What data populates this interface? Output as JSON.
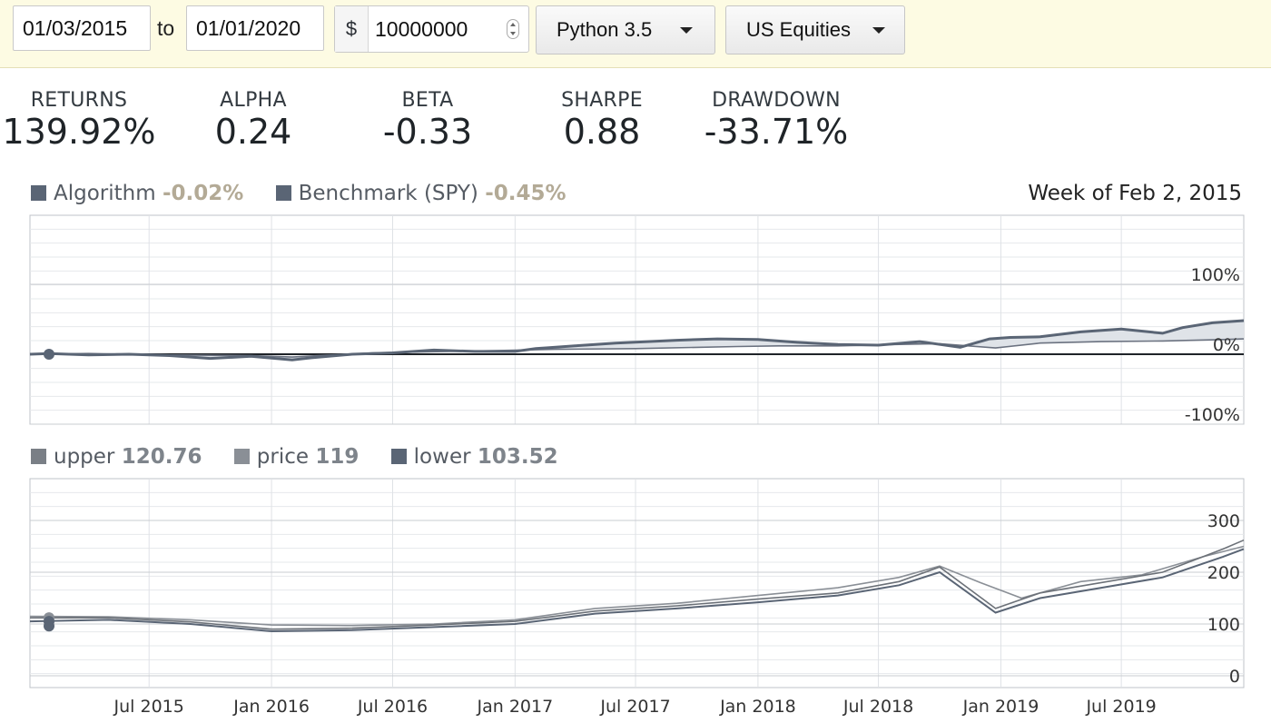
{
  "toolbar": {
    "start_date": "01/03/2015",
    "to_label": "to",
    "end_date": "01/01/2020",
    "currency_symbol": "$",
    "capital": "10000000",
    "language": "Python 3.5",
    "universe": "US Equities"
  },
  "metrics": [
    {
      "label": "RETURNS",
      "value": "139.92%"
    },
    {
      "label": "ALPHA",
      "value": "0.24"
    },
    {
      "label": "BETA",
      "value": "-0.33"
    },
    {
      "label": "SHARPE",
      "value": "0.88"
    },
    {
      "label": "DRAWDOWN",
      "value": "-33.71%"
    }
  ],
  "returns_legend": {
    "algorithm_label": "Algorithm",
    "algorithm_value": "-0.02%",
    "benchmark_label": "Benchmark (SPY)",
    "benchmark_value": "-0.45%",
    "week_label": "Week of Feb 2, 2015"
  },
  "custom_legend": {
    "upper_label": "upper",
    "upper_value": "120.76",
    "price_label": "price",
    "price_value": "119",
    "lower_label": "lower",
    "lower_value": "103.52"
  },
  "colors": {
    "algorithm": "#5a6575",
    "benchmark": "#6b7280",
    "fill": "#d9dde2",
    "toolbar_bg": "#fdfbe3"
  },
  "chart_data": [
    {
      "type": "line",
      "y_unit": "%",
      "yticks": [
        "100%",
        "0%",
        "-100%"
      ],
      "ylim": [
        -100,
        100
      ],
      "x_tick_labels": [
        "Jul 2015",
        "Jan 2016",
        "Jul 2016",
        "Jan 2017",
        "Jul 2017",
        "Jan 2018",
        "Jul 2018",
        "Jan 2019",
        "Jul 2019"
      ],
      "series": [
        {
          "name": "Algorithm",
          "points": [
            [
              "2015-01-03",
              0
            ],
            [
              "2015-02-01",
              1
            ],
            [
              "2015-04-01",
              -1
            ],
            [
              "2015-06-01",
              0
            ],
            [
              "2015-08-01",
              -2
            ],
            [
              "2015-10-01",
              -6
            ],
            [
              "2015-12-01",
              -3
            ],
            [
              "2016-02-01",
              -8
            ],
            [
              "2016-03-01",
              -5
            ],
            [
              "2016-05-01",
              0
            ],
            [
              "2016-07-01",
              2
            ],
            [
              "2016-09-01",
              6
            ],
            [
              "2016-11-01",
              4
            ],
            [
              "2017-01-01",
              4
            ],
            [
              "2017-02-01",
              8
            ],
            [
              "2017-04-01",
              12
            ],
            [
              "2017-06-01",
              16
            ],
            [
              "2017-09-01",
              20
            ],
            [
              "2017-11-01",
              22
            ],
            [
              "2018-01-01",
              21
            ],
            [
              "2018-03-01",
              17
            ],
            [
              "2018-05-01",
              14
            ],
            [
              "2018-07-01",
              13
            ],
            [
              "2018-09-01",
              18
            ],
            [
              "2018-11-01",
              10
            ],
            [
              "2018-12-15",
              22
            ],
            [
              "2019-01-15",
              24
            ],
            [
              "2019-03-01",
              25
            ],
            [
              "2019-05-01",
              32
            ],
            [
              "2019-07-01",
              36
            ],
            [
              "2019-09-01",
              30
            ],
            [
              "2019-10-01",
              38
            ],
            [
              "2019-11-15",
              45
            ],
            [
              "2020-01-01",
              48
            ]
          ]
        },
        {
          "name": "Benchmark (SPY)",
          "points": [
            [
              "2015-01-03",
              0
            ],
            [
              "2015-04-01",
              1
            ],
            [
              "2015-08-01",
              -1
            ],
            [
              "2015-12-01",
              -2
            ],
            [
              "2016-02-01",
              -4
            ],
            [
              "2016-06-01",
              2
            ],
            [
              "2016-12-01",
              5
            ],
            [
              "2017-03-01",
              7
            ],
            [
              "2017-07-01",
              8
            ],
            [
              "2017-12-01",
              11
            ],
            [
              "2018-02-01",
              12
            ],
            [
              "2018-05-01",
              12
            ],
            [
              "2018-08-01",
              14
            ],
            [
              "2018-10-01",
              15
            ],
            [
              "2018-12-24",
              9
            ],
            [
              "2019-03-01",
              16
            ],
            [
              "2019-06-01",
              18
            ],
            [
              "2019-09-01",
              19
            ],
            [
              "2019-12-01",
              21
            ],
            [
              "2020-01-01",
              22
            ]
          ]
        }
      ]
    },
    {
      "type": "line",
      "yticks": [
        "300",
        "200",
        "100",
        "0"
      ],
      "ylim": [
        0,
        300
      ],
      "x_tick_labels": [
        "Jul 2015",
        "Jan 2016",
        "Jul 2016",
        "Jan 2017",
        "Jul 2017",
        "Jan 2018",
        "Jul 2018",
        "Jan 2019",
        "Jul 2019"
      ],
      "series": [
        {
          "name": "upper",
          "points": [
            [
              "2015-01-03",
              115
            ],
            [
              "2015-05-01",
              114
            ],
            [
              "2015-09-01",
              108
            ],
            [
              "2016-01-01",
              98
            ],
            [
              "2016-05-01",
              97
            ],
            [
              "2016-09-01",
              100
            ],
            [
              "2017-01-01",
              108
            ],
            [
              "2017-05-01",
              130
            ],
            [
              "2017-09-01",
              140
            ],
            [
              "2018-01-01",
              155
            ],
            [
              "2018-05-01",
              170
            ],
            [
              "2018-08-01",
              190
            ],
            [
              "2018-10-01",
              212
            ],
            [
              "2018-12-01",
              180
            ],
            [
              "2019-02-01",
              150
            ],
            [
              "2019-05-01",
              182
            ],
            [
              "2019-08-01",
              195
            ],
            [
              "2019-11-01",
              230
            ],
            [
              "2020-01-01",
              250
            ]
          ]
        },
        {
          "name": "price",
          "points": [
            [
              "2015-01-03",
              112
            ],
            [
              "2015-05-01",
              112
            ],
            [
              "2015-09-01",
              104
            ],
            [
              "2016-01-01",
              90
            ],
            [
              "2016-05-01",
              92
            ],
            [
              "2016-09-01",
              98
            ],
            [
              "2017-01-01",
              105
            ],
            [
              "2017-05-01",
              125
            ],
            [
              "2017-09-01",
              135
            ],
            [
              "2018-01-01",
              148
            ],
            [
              "2018-05-01",
              160
            ],
            [
              "2018-08-01",
              182
            ],
            [
              "2018-10-01",
              210
            ],
            [
              "2018-12-24",
              130
            ],
            [
              "2019-03-01",
              160
            ],
            [
              "2019-06-01",
              180
            ],
            [
              "2019-09-01",
              200
            ],
            [
              "2019-12-01",
              245
            ],
            [
              "2020-01-01",
              262
            ]
          ]
        },
        {
          "name": "lower",
          "points": [
            [
              "2015-01-03",
              105
            ],
            [
              "2015-05-01",
              108
            ],
            [
              "2015-09-01",
              100
            ],
            [
              "2016-01-01",
              86
            ],
            [
              "2016-05-01",
              88
            ],
            [
              "2016-09-01",
              94
            ],
            [
              "2017-01-01",
              100
            ],
            [
              "2017-05-01",
              120
            ],
            [
              "2017-09-01",
              130
            ],
            [
              "2018-01-01",
              142
            ],
            [
              "2018-05-01",
              155
            ],
            [
              "2018-08-01",
              175
            ],
            [
              "2018-10-01",
              200
            ],
            [
              "2018-12-24",
              122
            ],
            [
              "2019-03-01",
              150
            ],
            [
              "2019-06-01",
              170
            ],
            [
              "2019-09-01",
              190
            ],
            [
              "2019-12-01",
              230
            ],
            [
              "2020-01-01",
              245
            ]
          ]
        }
      ]
    }
  ]
}
